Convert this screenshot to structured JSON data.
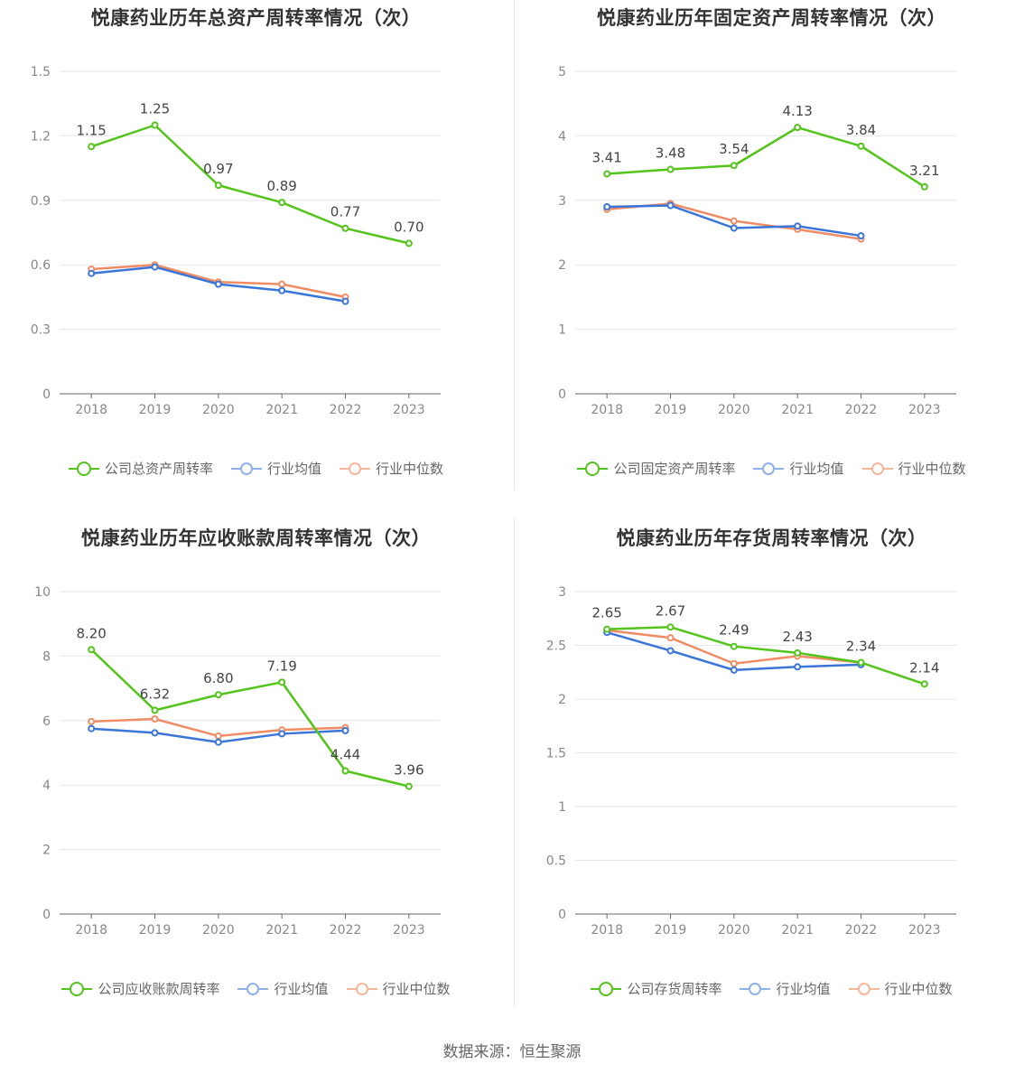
{
  "colors": {
    "company": "#52c41a",
    "avg": "#3a75d9",
    "median": "#f08c64",
    "grid": "#e6e6ee",
    "axis": "#666666"
  },
  "legend": {
    "avg": "行业均值",
    "median": "行业中位数"
  },
  "footer": "数据来源：恒生聚源",
  "chart_data": [
    {
      "type": "line",
      "title": "悦康药业历年总资产周转率情况（次）",
      "categories": [
        "2018",
        "2019",
        "2020",
        "2021",
        "2022",
        "2023"
      ],
      "ylim": [
        0,
        1.5
      ],
      "yticks": [
        "0",
        "0.3",
        "0.6",
        "0.9",
        "1.2",
        "1.5"
      ],
      "series": [
        {
          "name": "公司总资产周转率",
          "values": [
            1.15,
            1.25,
            0.97,
            0.89,
            0.77,
            0.7
          ],
          "labels": [
            "1.15",
            "1.25",
            "0.97",
            "0.89",
            "0.77",
            "0.70"
          ]
        },
        {
          "name": "行业均值",
          "values": [
            0.56,
            0.59,
            0.51,
            0.48,
            0.43,
            null
          ]
        },
        {
          "name": "行业中位数",
          "values": [
            0.58,
            0.6,
            0.52,
            0.51,
            0.45,
            null
          ]
        }
      ]
    },
    {
      "type": "line",
      "title": "悦康药业历年固定资产周转率情况（次）",
      "categories": [
        "2018",
        "2019",
        "2020",
        "2021",
        "2022",
        "2023"
      ],
      "ylim": [
        0,
        5
      ],
      "yticks": [
        "0",
        "1",
        "2",
        "3",
        "4",
        "5"
      ],
      "series": [
        {
          "name": "公司固定资产周转率",
          "values": [
            3.41,
            3.48,
            3.54,
            4.13,
            3.84,
            3.21
          ],
          "labels": [
            "3.41",
            "3.48",
            "3.54",
            "4.13",
            "3.84",
            "3.21"
          ]
        },
        {
          "name": "行业均值",
          "values": [
            2.9,
            2.92,
            2.57,
            2.6,
            2.45,
            null
          ]
        },
        {
          "name": "行业中位数",
          "values": [
            2.86,
            2.95,
            2.68,
            2.55,
            2.4,
            null
          ]
        }
      ]
    },
    {
      "type": "line",
      "title": "悦康药业历年应收账款周转率情况（次）",
      "categories": [
        "2018",
        "2019",
        "2020",
        "2021",
        "2022",
        "2023"
      ],
      "ylim": [
        0,
        10
      ],
      "yticks": [
        "0",
        "2",
        "4",
        "6",
        "8",
        "10"
      ],
      "series": [
        {
          "name": "公司应收账款周转率",
          "values": [
            8.2,
            6.32,
            6.8,
            7.19,
            4.44,
            3.96
          ],
          "labels": [
            "8.20",
            "6.32",
            "6.80",
            "7.19",
            "4.44",
            "3.96"
          ]
        },
        {
          "name": "行业均值",
          "values": [
            5.75,
            5.62,
            5.33,
            5.59,
            5.69,
            null
          ]
        },
        {
          "name": "行业中位数",
          "values": [
            5.97,
            6.05,
            5.52,
            5.71,
            5.78,
            null
          ]
        }
      ]
    },
    {
      "type": "line",
      "title": "悦康药业历年存货周转率情况（次）",
      "categories": [
        "2018",
        "2019",
        "2020",
        "2021",
        "2022",
        "2023"
      ],
      "ylim": [
        0,
        3
      ],
      "yticks": [
        "0",
        "0.5",
        "1",
        "1.5",
        "2",
        "2.5",
        "3"
      ],
      "series": [
        {
          "name": "公司存货周转率",
          "values": [
            2.65,
            2.67,
            2.49,
            2.43,
            2.34,
            2.14
          ],
          "labels": [
            "2.65",
            "2.67",
            "2.49",
            "2.43",
            "2.34",
            "2.14"
          ]
        },
        {
          "name": "行业均值",
          "values": [
            2.62,
            2.45,
            2.27,
            2.3,
            2.32,
            null
          ]
        },
        {
          "name": "行业中位数",
          "values": [
            2.64,
            2.57,
            2.33,
            2.4,
            2.34,
            null
          ]
        }
      ]
    }
  ]
}
